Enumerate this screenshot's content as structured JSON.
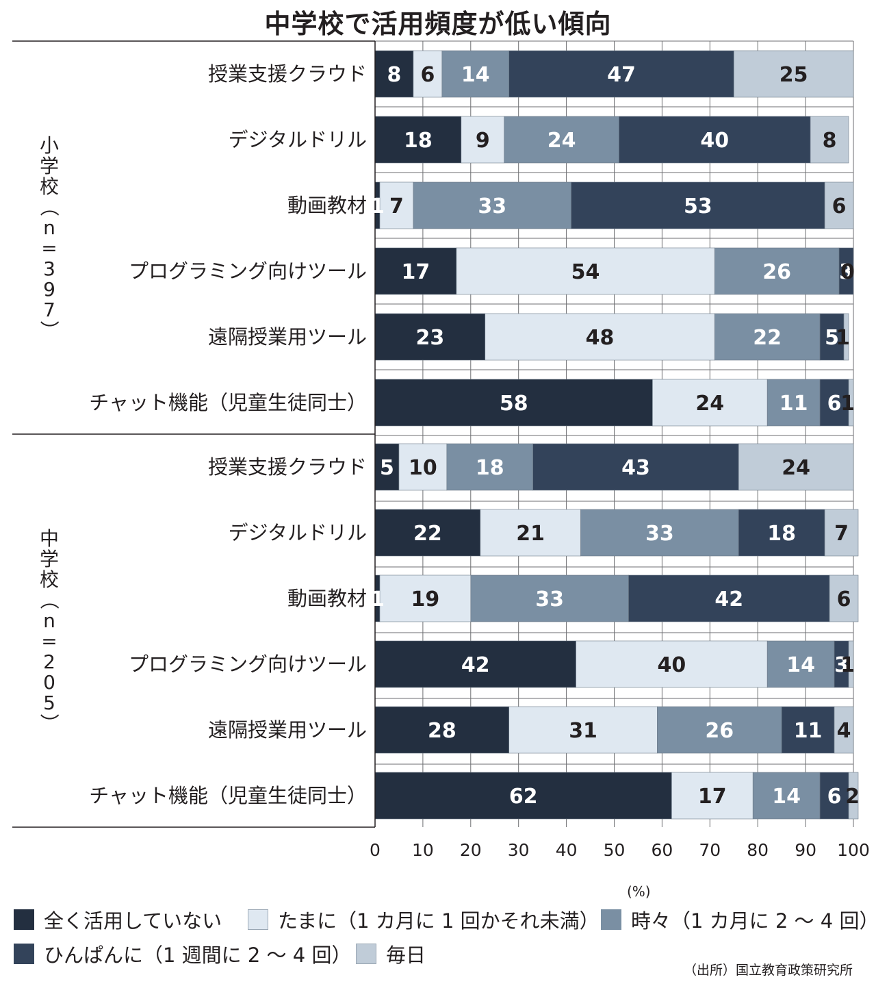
{
  "chart_data": {
    "type": "bar",
    "orientation": "horizontal",
    "stacked": true,
    "title": "中学校で活用頻度が低い傾向",
    "unit": "(%)",
    "xlim": [
      0,
      100
    ],
    "x_ticks": [
      "0",
      "10",
      "20",
      "30",
      "40",
      "50",
      "60",
      "70",
      "80",
      "90",
      "100"
    ],
    "grid": true,
    "legend_position": "bottom",
    "series": [
      {
        "name": "全く活用していない",
        "color": "#232f40"
      },
      {
        "name": "たまに（1 カ月に 1 回かそれ未満）",
        "color": "#dfe8f1"
      },
      {
        "name": "時々（1 カ月に 2 〜 4 回）",
        "color": "#7a8fa3"
      },
      {
        "name": "ひんぱんに（1 週間に 2 〜 4 回）",
        "color": "#33435a"
      },
      {
        "name": "毎日",
        "color": "#c0ccd8"
      }
    ],
    "groups": [
      {
        "label_chars": [
          "小",
          "学",
          "校",
          "（",
          "n",
          "=",
          "3",
          "9",
          "7",
          "）"
        ],
        "rows": [
          {
            "category": "授業支援クラウド",
            "values": [
              8,
              6,
              14,
              47,
              25
            ]
          },
          {
            "category": "デジタルドリル",
            "values": [
              18,
              9,
              24,
              40,
              8
            ]
          },
          {
            "category": "動画教材",
            "values": [
              1,
              7,
              33,
              53,
              6
            ]
          },
          {
            "category": "プログラミング向けツール",
            "values": [
              17,
              54,
              26,
              3,
              0
            ]
          },
          {
            "category": "遠隔授業用ツール",
            "values": [
              23,
              48,
              22,
              5,
              1
            ]
          },
          {
            "category": "チャット機能（児童生徒同士）",
            "values": [
              58,
              24,
              11,
              6,
              1
            ]
          }
        ]
      },
      {
        "label_chars": [
          "中",
          "学",
          "校",
          "（",
          "n",
          "=",
          "2",
          "0",
          "5",
          "）"
        ],
        "rows": [
          {
            "category": "授業支援クラウド",
            "values": [
              5,
              10,
              18,
              43,
              24
            ]
          },
          {
            "category": "デジタルドリル",
            "values": [
              22,
              21,
              33,
              18,
              7
            ]
          },
          {
            "category": "動画教材",
            "values": [
              1,
              19,
              33,
              42,
              6
            ]
          },
          {
            "category": "プログラミング向けツール",
            "values": [
              42,
              40,
              14,
              3,
              1
            ]
          },
          {
            "category": "遠隔授業用ツール",
            "values": [
              28,
              31,
              26,
              11,
              4
            ]
          },
          {
            "category": "チャット機能（児童生徒同士）",
            "values": [
              62,
              17,
              14,
              6,
              2
            ]
          }
        ]
      }
    ]
  },
  "source": "（出所）国立教育政策研究所"
}
